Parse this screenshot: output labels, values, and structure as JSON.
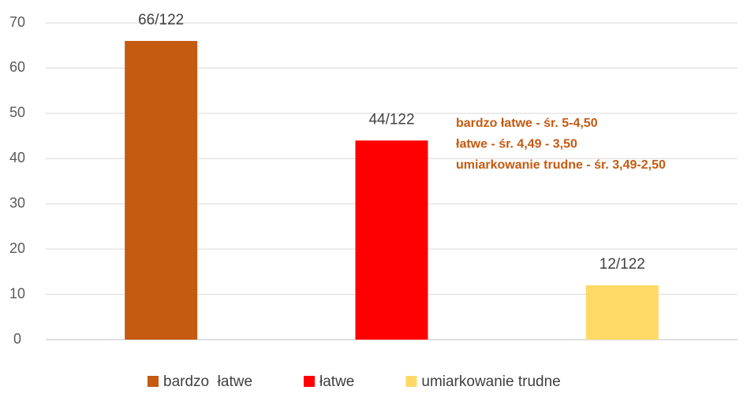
{
  "chart_data": {
    "type": "bar",
    "categories": [
      null
    ],
    "series": [
      {
        "name": "bardzo  łatwe",
        "color": "#c55a11",
        "values": [
          66
        ],
        "value_labels": [
          "66/122"
        ]
      },
      {
        "name": "łatwe",
        "color": "#ff0000",
        "values": [
          44
        ],
        "value_labels": [
          "44/122"
        ]
      },
      {
        "name": "umiarkowanie trudne",
        "color": "#ffd966",
        "values": [
          12
        ],
        "value_labels": [
          "12/122"
        ]
      }
    ],
    "annotations": [
      "bardzo łatwe - śr. 5-4,50",
      "łatwe - śr. 4,49 - 3,50",
      "umiarkowanie trudne - śr. 3,49-2,50"
    ],
    "annotation_color": "#c55a11",
    "ylim": [
      0,
      70
    ],
    "yticks": [
      0,
      10,
      20,
      30,
      40,
      50,
      60,
      70
    ],
    "grid": true,
    "legend": "bottom"
  }
}
